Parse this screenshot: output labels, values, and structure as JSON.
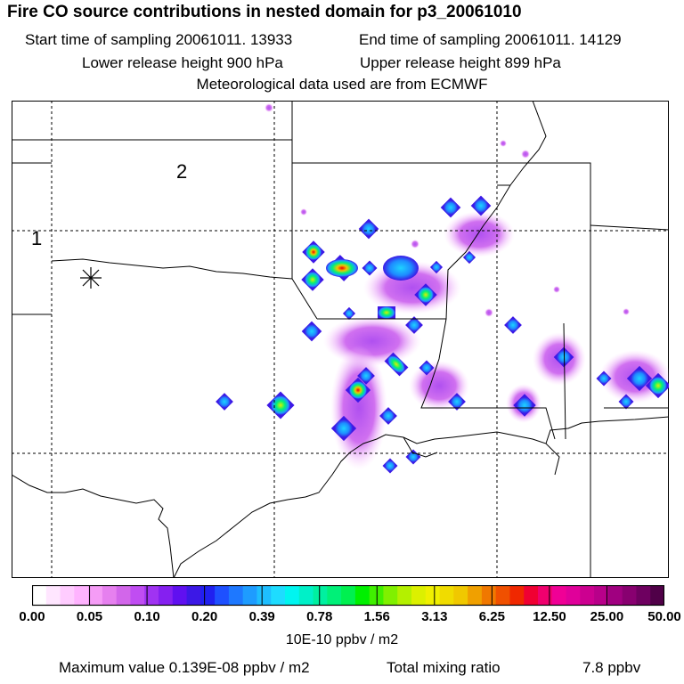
{
  "header": {
    "title": "Fire CO source contributions in nested domain for p3_20061010",
    "start_time": "Start time of sampling 20061011. 13933",
    "end_time": "End time of sampling 20061011. 14129",
    "lower_height": "Lower release height  900 hPa",
    "upper_height": "Upper release height  899 hPa",
    "met_data": "Meteorological data used are from ECMWF"
  },
  "map": {
    "label_domain_2": "2",
    "label_domain_1": "1",
    "release_marker_icon": "asterisk-icon"
  },
  "colorbar": {
    "ticks": [
      "0.00",
      "0.05",
      "0.10",
      "0.20",
      "0.39",
      "0.78",
      "1.56",
      "3.13",
      "6.25",
      "12.50",
      "25.00",
      "50.00"
    ],
    "colors": [
      "#ffffff",
      "#ffe6ff",
      "#ffccff",
      "#ffb3ff",
      "#f59cf6",
      "#e680ef",
      "#d266ea",
      "#c04df2",
      "#a033f2",
      "#8520f0",
      "#6010f0",
      "#3c18e6",
      "#2020f0",
      "#1e50ff",
      "#1e78ff",
      "#1e9cff",
      "#1ebeff",
      "#1edcff",
      "#00f5f0",
      "#00f0c8",
      "#00f0a0",
      "#00f078",
      "#00f050",
      "#00f000",
      "#40f000",
      "#80f000",
      "#b4f000",
      "#dcf000",
      "#f0f000",
      "#f0dc00",
      "#f0c800",
      "#f0a000",
      "#f07800",
      "#f05000",
      "#f02800",
      "#f00032",
      "#f0006e",
      "#f00096",
      "#e0009a",
      "#cc0090",
      "#b8008a",
      "#a00080",
      "#880070",
      "#6e0060",
      "#500048"
    ],
    "unit": "10E-10 ppbv / m2"
  },
  "footer": {
    "max_value": "Maximum value  0.139E-08 ppbv / m2",
    "total_label": "Total mixing ratio",
    "total_value": "7.8 ppbv"
  },
  "colors": {
    "frame": "#000000",
    "coast": "#000000",
    "grid": "#000000"
  }
}
